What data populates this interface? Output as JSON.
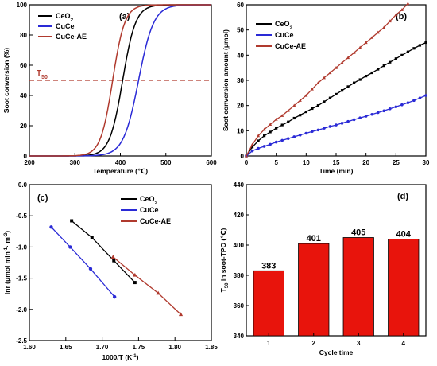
{
  "chart_data": [
    {
      "panel": "(a)",
      "type": "line",
      "xlabel": "Temperature (℃)",
      "ylabel": "Soot conversion (%)",
      "xlim": [
        200,
        600
      ],
      "ylim": [
        0,
        100
      ],
      "xticks": [
        200,
        300,
        400,
        500,
        600
      ],
      "yticks": [
        0,
        20,
        40,
        60,
        80,
        100
      ],
      "legend_position": "top-left",
      "annotation": {
        "text": "T",
        "sub": "50",
        "y": 50,
        "color": "#b03a2e"
      },
      "series": [
        {
          "name": "CeO2",
          "color": "#000000",
          "t50": 405,
          "k": 0.07
        },
        {
          "name": "CuCe",
          "color": "#2a2ad6",
          "t50": 440,
          "k": 0.06
        },
        {
          "name": "CuCe-AE",
          "color": "#b03a2e",
          "t50": 383,
          "k": 0.075
        }
      ]
    },
    {
      "panel": "(b)",
      "type": "line",
      "xlabel": "Time (min)",
      "ylabel": "Soot conversion amount (μmol)",
      "xlim": [
        0,
        30
      ],
      "ylim": [
        0,
        60
      ],
      "xticks": [
        0,
        5,
        10,
        15,
        20,
        25,
        30
      ],
      "yticks": [
        0,
        10,
        20,
        30,
        40,
        50,
        60
      ],
      "legend_position": "top-left",
      "series": [
        {
          "name": "CeO2",
          "color": "#000000",
          "x": [
            0,
            1,
            2,
            3,
            4,
            5,
            6,
            7,
            8,
            9,
            10,
            11,
            12,
            13,
            14,
            15,
            16,
            17,
            18,
            19,
            20,
            21,
            22,
            23,
            24,
            25,
            26,
            27,
            28,
            29,
            30
          ],
          "y": [
            0,
            3.5,
            6,
            8,
            9.5,
            11,
            12.3,
            13.5,
            15,
            16.2,
            17.5,
            18.8,
            20,
            21.5,
            23,
            24.5,
            26,
            27.5,
            29,
            30.3,
            31.7,
            33,
            34.4,
            35.8,
            37.2,
            38.6,
            40,
            41.3,
            42.7,
            43.9,
            45
          ]
        },
        {
          "name": "CuCe",
          "color": "#2a2ad6",
          "x": [
            0,
            1,
            2,
            3,
            4,
            5,
            6,
            7,
            8,
            9,
            10,
            11,
            12,
            13,
            14,
            15,
            16,
            17,
            18,
            19,
            20,
            21,
            22,
            23,
            24,
            25,
            26,
            27,
            28,
            29,
            30
          ],
          "y": [
            0,
            2,
            3,
            3.8,
            4.6,
            5.5,
            6.2,
            6.9,
            7.6,
            8.3,
            9,
            9.7,
            10.3,
            11,
            11.7,
            12.3,
            13,
            13.7,
            14.4,
            15.1,
            15.8,
            16.5,
            17.2,
            17.9,
            18.7,
            19.5,
            20.3,
            21.1,
            22,
            23,
            24
          ]
        },
        {
          "name": "CuCe-AE",
          "color": "#b03a2e",
          "x": [
            0,
            1,
            2,
            3,
            4,
            5,
            6,
            7,
            8,
            9,
            10,
            11,
            12,
            13,
            14,
            15,
            16,
            17,
            18,
            19,
            20,
            21,
            22,
            23,
            24,
            25,
            26,
            27
          ],
          "y": [
            0,
            4.5,
            8,
            10.5,
            12.5,
            14.5,
            16,
            18,
            20,
            22,
            24,
            26.5,
            29,
            31,
            33,
            35,
            37,
            39,
            41,
            43,
            45,
            47,
            49,
            51,
            53.5,
            56,
            58,
            60.5
          ]
        }
      ]
    },
    {
      "panel": "(c)",
      "type": "scatter",
      "xlabel": "1000/T (K",
      "xlabel_sup": "-1",
      "xlabel_end": ")",
      "ylabel": "lnr (μmol min",
      "xlim": [
        1.6,
        1.85
      ],
      "ylim": [
        -2.5,
        0
      ],
      "xticks": [
        1.6,
        1.65,
        1.7,
        1.75,
        1.8,
        1.85
      ],
      "yticks": [
        -2.5,
        -2.0,
        -1.5,
        -1.0,
        -0.5,
        0.0
      ],
      "legend_position": "top-right",
      "series": [
        {
          "name": "CeO2",
          "color": "#000000",
          "marker": "square",
          "x": [
            1.658,
            1.686,
            1.716,
            1.745
          ],
          "y": [
            -0.58,
            -0.85,
            -1.22,
            -1.57
          ]
        },
        {
          "name": "CuCe",
          "color": "#2a2ad6",
          "marker": "circle",
          "x": [
            1.63,
            1.656,
            1.684,
            1.717
          ],
          "y": [
            -0.68,
            -1.0,
            -1.35,
            -1.8
          ]
        },
        {
          "name": "CuCe-AE",
          "color": "#b03a2e",
          "marker": "triangle",
          "x": [
            1.715,
            1.745,
            1.777,
            1.808
          ],
          "y": [
            -1.16,
            -1.45,
            -1.74,
            -2.08
          ]
        }
      ]
    },
    {
      "panel": "(d)",
      "type": "bar",
      "xlabel": "Cycle time",
      "ylabel": "T50 in soot-TPO (℃)",
      "categories": [
        "1",
        "2",
        "3",
        "4"
      ],
      "values": [
        383,
        401,
        405,
        404
      ],
      "value_labels": [
        "383",
        "401",
        "405",
        "404"
      ],
      "ylim": [
        340,
        440
      ],
      "yticks": [
        340,
        360,
        380,
        400,
        420,
        440
      ],
      "bar_color": "#e8140c"
    }
  ]
}
